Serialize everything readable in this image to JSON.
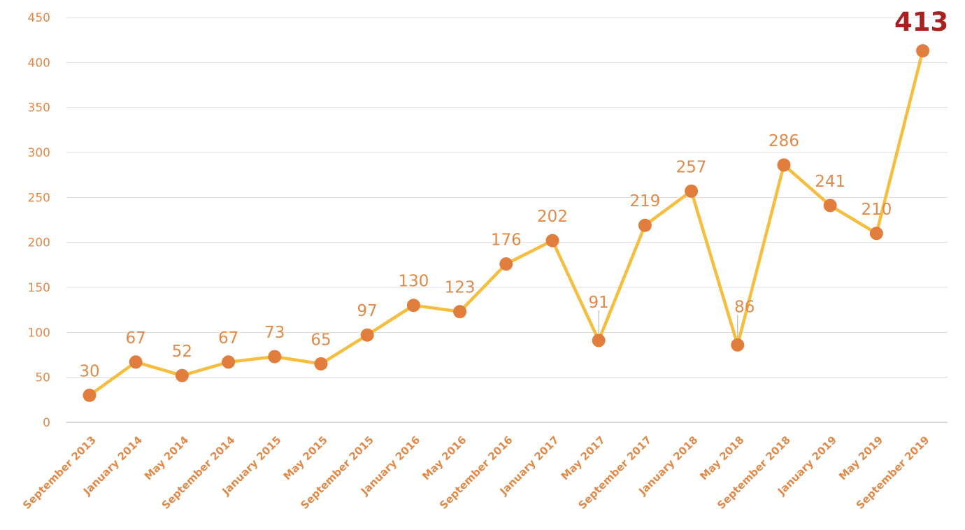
{
  "chart_data": {
    "type": "line",
    "title": "",
    "xlabel": "",
    "ylabel": "",
    "categories": [
      "September 2013",
      "January 2014",
      "May 2014",
      "September 2014",
      "January 2015",
      "May 2015",
      "September 2015",
      "January 2016",
      "May 2016",
      "September 2016",
      "January 2017",
      "May 2017",
      "September 2017",
      "January 2018",
      "May 2018",
      "September 2018",
      "January 2019",
      "May 2019",
      "September 2019"
    ],
    "series": [
      {
        "values": [
          30,
          67,
          52,
          67,
          73,
          65,
          97,
          130,
          123,
          176,
          202,
          91,
          219,
          257,
          86,
          286,
          241,
          210,
          413
        ]
      }
    ],
    "data_labels": [
      "30",
      "67",
      "52",
      "67",
      "73",
      "65",
      "97",
      "130",
      "123",
      "176",
      "202",
      "91",
      "219",
      "257",
      "86",
      "286",
      "241",
      "210",
      "413"
    ],
    "y_ticks": [
      "0",
      "50",
      "100",
      "150",
      "200",
      "250",
      "300",
      "350",
      "400",
      "450"
    ],
    "ylim": [
      0,
      450
    ],
    "grid": true,
    "legend": "none",
    "highlight_last_label": true,
    "colors": {
      "line": "#f5be3e",
      "marker": "#e27e3d",
      "label": "#e08a4a",
      "highlight_label": "#a82020",
      "grid": "#dddddd",
      "axis": "#cccccc",
      "tick_label": "#e08a4a",
      "leader": "#aaaaaa"
    }
  }
}
